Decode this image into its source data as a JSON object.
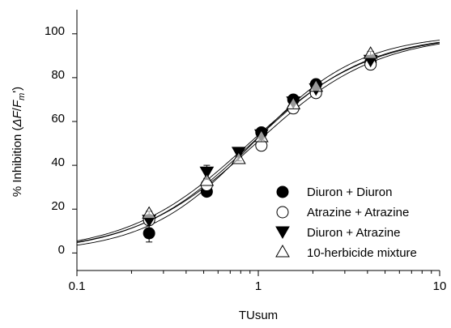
{
  "chart_data": {
    "type": "scatter",
    "title": "",
    "xlabel": "TUsum",
    "ylabel": {
      "prefix": "% Inhibition (",
      "delta_f": "ΔF",
      "slash": "/",
      "f": "F",
      "m_sub": "m",
      "prime": "'",
      "suffix": ")"
    },
    "x_scale": "log",
    "xlim": [
      0.1,
      10
    ],
    "ylim": [
      -8,
      111
    ],
    "x_ticks": [
      0.1,
      1,
      10
    ],
    "x_tick_labels": [
      "0.1",
      "1",
      "10"
    ],
    "y_ticks": [
      0,
      20,
      40,
      60,
      80,
      100
    ],
    "y_tick_labels": [
      "0",
      "20",
      "40",
      "60",
      "80",
      "100"
    ],
    "grid": false,
    "legend_position": "bottom-right",
    "series": [
      {
        "name": "Diuron + Diuron",
        "marker": "filled-circle",
        "color": "#000000",
        "x": [
          0.25,
          0.52,
          1.04,
          1.56,
          2.08,
          4.16
        ],
        "y": [
          9,
          28,
          55,
          70,
          77,
          87
        ],
        "err": [
          4,
          2,
          2,
          2,
          1,
          1
        ],
        "fit": {
          "ec50": 0.92,
          "hill": 1.35
        }
      },
      {
        "name": "Atrazine + Atrazine",
        "marker": "open-circle",
        "color": "#000000",
        "x": [
          0.25,
          0.52,
          1.04,
          1.56,
          2.08,
          4.16
        ],
        "y": [
          15,
          31,
          49,
          66,
          73,
          86
        ],
        "err": [
          1,
          1,
          1,
          1,
          1,
          1
        ],
        "fit": {
          "ec50": 0.97,
          "hill": 1.3
        }
      },
      {
        "name": "Diuron + Atrazine",
        "marker": "filled-triangle-down",
        "color": "#000000",
        "x": [
          0.25,
          0.52,
          0.78,
          1.04,
          1.56,
          2.08,
          4.16
        ],
        "y": [
          15,
          37,
          46,
          54,
          69,
          75,
          88
        ],
        "err": [
          1,
          3,
          2,
          1,
          1,
          1,
          1
        ],
        "fit": {
          "ec50": 0.89,
          "hill": 1.3
        }
      },
      {
        "name": "10-herbicide mixture",
        "marker": "open-triangle-up",
        "color": "#000000",
        "x": [
          0.25,
          0.52,
          0.78,
          1.04,
          1.56,
          2.08,
          4.16
        ],
        "y": [
          18,
          33,
          43,
          53,
          68,
          76,
          91
        ],
        "err": [
          1,
          1,
          1,
          1,
          1,
          1,
          1
        ],
        "fit": {
          "ec50": 0.93,
          "hill": 1.48
        }
      }
    ]
  }
}
